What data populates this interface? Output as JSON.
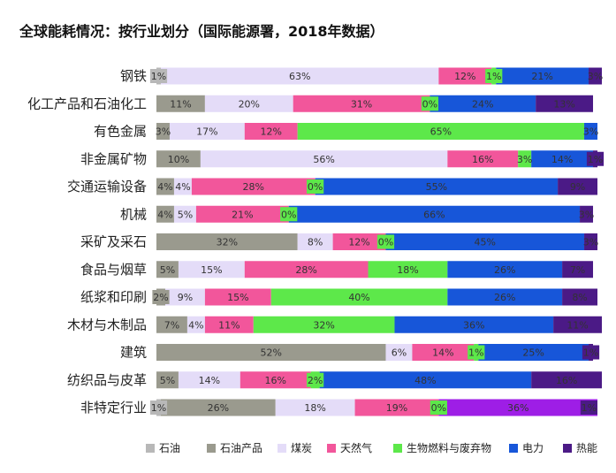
{
  "chart_data": {
    "type": "bar",
    "orientation": "horizontal",
    "stacked": true,
    "title": "全球能耗情况：按行业划分（国际能源署，2018年数据）",
    "xlim": [
      0,
      100
    ],
    "grid": false,
    "legend_position": "bottom",
    "categories": [
      "钢铁",
      "化工产品和石油化工",
      "有色金属",
      "非金属矿物",
      "交通运输设备",
      "机械",
      "采矿及采石",
      "食品与烟草",
      "纸浆和印刷",
      "木材与木制品",
      "建筑",
      "纺织品与皮革",
      "非特定行业"
    ],
    "series": [
      {
        "name": "石油",
        "color": "#b8b8b8",
        "values": [
          1,
          0,
          0,
          0,
          0,
          0,
          0,
          0,
          0,
          0,
          0,
          0,
          1
        ]
      },
      {
        "name": "石油产品",
        "color": "#9a9a8e",
        "values": [
          0,
          11,
          3,
          10,
          4,
          4,
          32,
          5,
          2,
          7,
          52,
          5,
          26
        ]
      },
      {
        "name": "煤炭",
        "color": "#e4dcf8",
        "values": [
          63,
          20,
          17,
          56,
          4,
          5,
          8,
          15,
          9,
          4,
          6,
          14,
          18
        ]
      },
      {
        "name": "天然气",
        "color": "#f2569b",
        "values": [
          12,
          31,
          12,
          16,
          28,
          21,
          12,
          28,
          15,
          11,
          14,
          16,
          19
        ]
      },
      {
        "name": "生物燃料与废弃物",
        "color": "#5de84a",
        "values": [
          1,
          0,
          65,
          3,
          0,
          0,
          0,
          18,
          40,
          32,
          1,
          2,
          0
        ]
      },
      {
        "name": "电力",
        "color": "#1756d9",
        "values": [
          21,
          24,
          3,
          14,
          55,
          66,
          45,
          26,
          26,
          36,
          25,
          48,
          0
        ]
      },
      {
        "name": "热能",
        "color": "#4b1a86",
        "values": [
          3,
          13,
          0,
          1,
          9,
          3,
          3,
          7,
          8,
          11,
          1,
          16,
          0
        ]
      },
      {
        "name": "",
        "color": "#9e1ee6",
        "values": [
          0,
          0,
          0,
          0,
          0,
          0,
          0,
          0,
          0,
          0,
          0,
          0,
          36
        ]
      }
    ],
    "labels": [
      [
        "1%",
        "",
        "63%",
        "12%",
        "1%",
        "21%",
        "3%",
        ""
      ],
      [
        "",
        "11%",
        "20%",
        "31%",
        "0%",
        "24%",
        "13%",
        ""
      ],
      [
        "",
        "3%",
        "17%",
        "12%",
        "65%",
        "3%",
        "",
        ""
      ],
      [
        "",
        "10%",
        "56%",
        "16%",
        "3%",
        "14%",
        "1%",
        ""
      ],
      [
        "",
        "4%",
        "4%",
        "28%",
        "0%",
        "55%",
        "9%",
        ""
      ],
      [
        "",
        "4%",
        "5%",
        "21%",
        "0%",
        "66%",
        "3%",
        ""
      ],
      [
        "",
        "32%",
        "8%",
        "12%",
        "0%",
        "45%",
        "3%",
        ""
      ],
      [
        "",
        "5%",
        "15%",
        "28%",
        "18%",
        "26%",
        "7%",
        ""
      ],
      [
        "",
        "2%",
        "9%",
        "15%",
        "40%",
        "26%",
        "8%",
        ""
      ],
      [
        "",
        "7%",
        "4%",
        "11%",
        "32%",
        "36%",
        "11%",
        ""
      ],
      [
        "",
        "52%",
        "6%",
        "14%",
        "1%",
        "25%",
        "1%",
        ""
      ],
      [
        "",
        "5%",
        "14%",
        "16%",
        "2%",
        "48%",
        "16%",
        ""
      ],
      [
        "1%",
        "26%",
        "18%",
        "19%",
        "0%",
        "",
        "",
        "36%"
      ]
    ],
    "trailing_labels": [
      "",
      "",
      "",
      "",
      "",
      "",
      "",
      "",
      "",
      "",
      "",
      "",
      "1%"
    ]
  }
}
